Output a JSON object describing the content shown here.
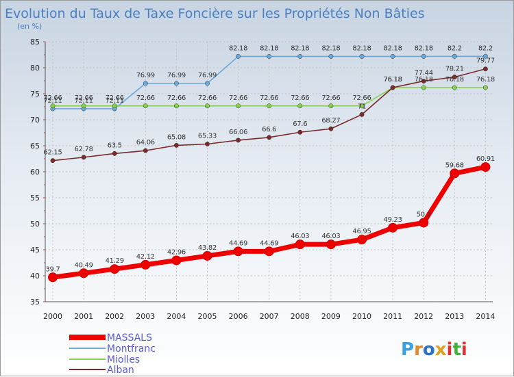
{
  "chart_data": {
    "type": "line",
    "title": "Evolution du Taux de Taxe Foncière sur les Propriétés Non Bâties",
    "ylabel": "(en %)",
    "xlabel": "",
    "ylim": [
      35,
      85
    ],
    "yticks": [
      35,
      40,
      45,
      50,
      55,
      60,
      65,
      70,
      75,
      80,
      85
    ],
    "categories": [
      "2000",
      "2001",
      "2002",
      "2003",
      "2004",
      "2005",
      "2006",
      "2007",
      "2008",
      "2009",
      "2010",
      "2011",
      "2012",
      "2013",
      "2014"
    ],
    "series": [
      {
        "name": "MASSALS",
        "color": "#ee0000",
        "values": [
          39.7,
          40.49,
          41.29,
          42.12,
          42.96,
          43.82,
          44.69,
          44.69,
          46.03,
          46.03,
          46.95,
          49.23,
          50.2,
          59.68,
          60.91
        ],
        "labels": [
          "39.7",
          "40.49",
          "41.29",
          "42.12",
          "42.96",
          "43.82",
          "44.69",
          "44.69",
          "46.03",
          "46.03",
          "46.95",
          "49.23",
          "50.2",
          "59.68",
          "60.91"
        ]
      },
      {
        "name": "Montfranc",
        "color": "#6aa8d8",
        "values": [
          72.11,
          72.11,
          72.11,
          76.99,
          76.99,
          76.99,
          82.18,
          82.18,
          82.18,
          82.18,
          82.18,
          82.18,
          82.18,
          82.2,
          82.2
        ],
        "labels": [
          "72.11",
          "72.11",
          "72.11",
          "76.99",
          "76.99",
          "76.99",
          "82.18",
          "82.18",
          "82.18",
          "82.18",
          "82.18",
          "82.18",
          "82.18",
          "82.2",
          "82.2"
        ]
      },
      {
        "name": "Miolles",
        "color": "#88d050",
        "values": [
          72.66,
          72.66,
          72.66,
          72.66,
          72.66,
          72.66,
          72.66,
          72.66,
          72.66,
          72.66,
          72.66,
          76.18,
          76.18,
          76.18,
          76.18
        ],
        "labels": [
          "72.66",
          "72.66",
          "72.66",
          "72.66",
          "72.66",
          "72.66",
          "72.66",
          "72.66",
          "72.66",
          "72.66",
          "72.66",
          "76.18",
          "76.18",
          "76.18",
          "76.18"
        ]
      },
      {
        "name": "Alban",
        "color": "#7a2a2a",
        "values": [
          62.15,
          62.78,
          63.5,
          64.06,
          65.08,
          65.33,
          66.06,
          66.6,
          67.6,
          68.27,
          71,
          76.18,
          77.44,
          78.21,
          79.77
        ],
        "labels": [
          "62.15",
          "62.78",
          "63.5",
          "64.06",
          "65.08",
          "65.33",
          "66.06",
          "66.6",
          "67.6",
          "68.27",
          "71",
          "76.18",
          "77.44",
          "78.21",
          "79.77"
        ]
      }
    ],
    "legend": [
      "MASSALS",
      "Montfranc",
      "Miolles",
      "Alban"
    ],
    "legend_position": "bottom-left"
  },
  "logo": {
    "text": "Proxiti"
  }
}
